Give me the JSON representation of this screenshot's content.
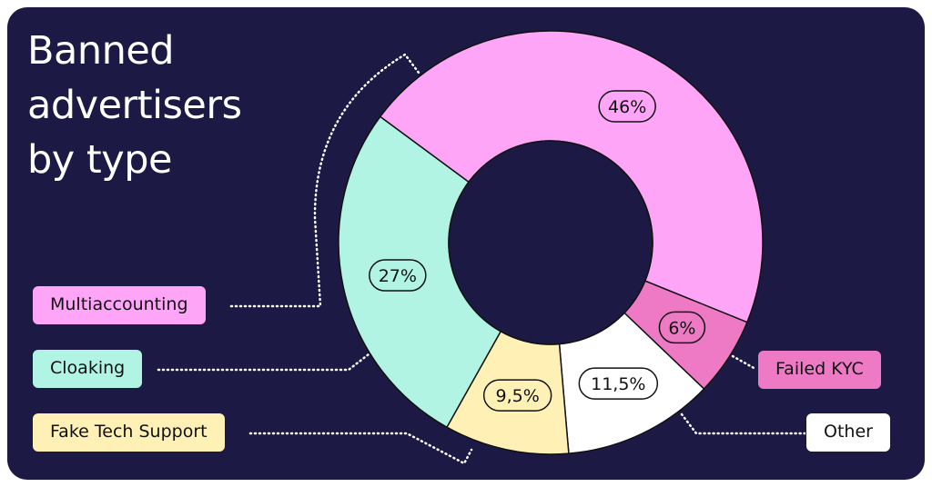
{
  "title_lines": [
    "Banned",
    "advertisers",
    "by type"
  ],
  "chart_data": {
    "type": "pie",
    "donut": true,
    "start_angle_deg": -143.5,
    "direction": "clockwise",
    "slices": [
      {
        "name": "Multiaccounting",
        "value": 46,
        "label": "46%",
        "color": "#ffa5f8"
      },
      {
        "name": "Failed KYC",
        "value": 6,
        "label": "6%",
        "color": "#ee7ac6"
      },
      {
        "name": "Other",
        "value": 11.5,
        "label": "11,5%",
        "color": "#ffffff"
      },
      {
        "name": "Fake Tech Support",
        "value": 9.5,
        "label": "9,5%",
        "color": "#fff1b6"
      },
      {
        "name": "Cloaking",
        "value": 27,
        "label": "27%",
        "color": "#b1f4e3"
      }
    ]
  },
  "colors": {
    "background": "#1c1a45",
    "outline": "#1c1a45"
  }
}
